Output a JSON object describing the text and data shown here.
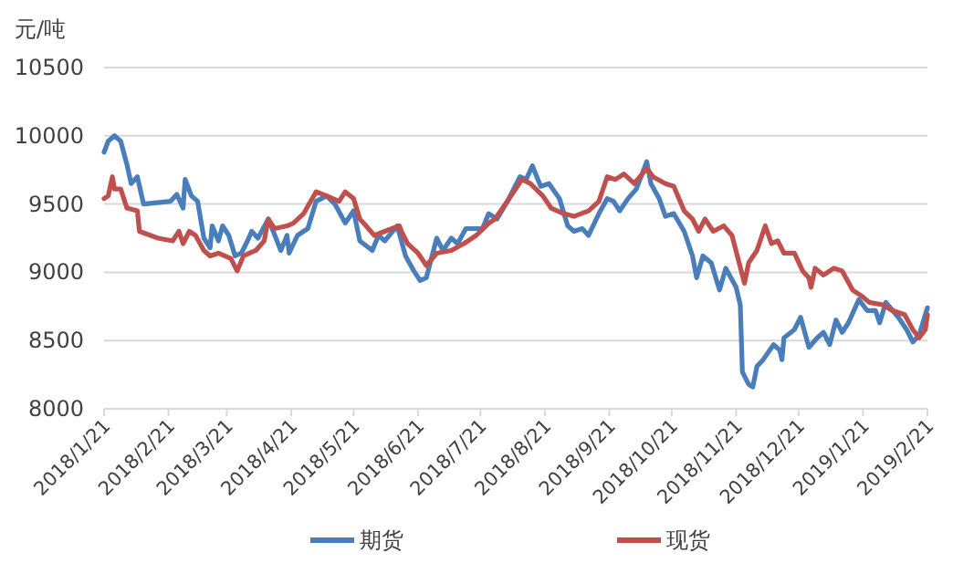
{
  "chart_data": {
    "type": "line",
    "ylabel": "元/吨",
    "grid": "y",
    "legend": "bottom",
    "xlim": [
      "2018-01-21",
      "2019-02-21"
    ],
    "xticks": [
      {
        "value": "2018-01-21",
        "label": "2018/1/21"
      },
      {
        "value": "2018-02-21",
        "label": "2018/2/21"
      },
      {
        "value": "2018-03-21",
        "label": "2018/3/21"
      },
      {
        "value": "2018-04-21",
        "label": "2018/4/21"
      },
      {
        "value": "2018-05-21",
        "label": "2018/5/21"
      },
      {
        "value": "2018-06-21",
        "label": "2018/6/21"
      },
      {
        "value": "2018-07-21",
        "label": "2018/7/21"
      },
      {
        "value": "2018-08-21",
        "label": "2018/8/21"
      },
      {
        "value": "2018-09-21",
        "label": "2018/9/21"
      },
      {
        "value": "2018-10-21",
        "label": "2018/10/21"
      },
      {
        "value": "2018-11-21",
        "label": "2018/11/21"
      },
      {
        "value": "2018-12-21",
        "label": "2018/12/21"
      },
      {
        "value": "2019-01-21",
        "label": "2019/1/21"
      },
      {
        "value": "2019-02-21",
        "label": "2019/2/21"
      }
    ],
    "ylim": [
      8000,
      10500
    ],
    "yticks": [
      8000,
      8500,
      9000,
      9500,
      10000,
      10500
    ],
    "series": [
      {
        "name": "期货",
        "color": "#4a7ebb",
        "x": [
          "2018-01-21",
          "2018-01-23",
          "2018-01-26",
          "2018-01-29",
          "2018-02-01",
          "2018-02-03",
          "2018-02-06",
          "2018-02-09",
          "2018-02-22",
          "2018-02-25",
          "2018-02-28",
          "2018-03-01",
          "2018-03-04",
          "2018-03-07",
          "2018-03-10",
          "2018-03-13",
          "2018-03-14",
          "2018-03-17",
          "2018-03-19",
          "2018-03-22",
          "2018-03-25",
          "2018-03-28",
          "2018-03-31",
          "2018-04-02",
          "2018-04-05",
          "2018-04-10",
          "2018-04-16",
          "2018-04-19",
          "2018-04-20",
          "2018-04-24",
          "2018-04-29",
          "2018-05-03",
          "2018-05-08",
          "2018-05-12",
          "2018-05-17",
          "2018-05-21",
          "2018-05-24",
          "2018-05-30",
          "2018-06-02",
          "2018-06-05",
          "2018-06-11",
          "2018-06-15",
          "2018-06-19",
          "2018-06-22",
          "2018-06-25",
          "2018-06-30",
          "2018-07-03",
          "2018-07-07",
          "2018-07-10",
          "2018-07-14",
          "2018-07-22",
          "2018-07-25",
          "2018-07-29",
          "2018-08-03",
          "2018-08-09",
          "2018-08-12",
          "2018-08-15",
          "2018-08-19",
          "2018-08-23",
          "2018-08-28",
          "2018-09-01",
          "2018-09-04",
          "2018-09-08",
          "2018-09-11",
          "2018-09-16",
          "2018-09-20",
          "2018-09-23",
          "2018-09-26",
          "2018-09-30",
          "2018-10-04",
          "2018-10-09",
          "2018-10-11",
          "2018-10-15",
          "2018-10-18",
          "2018-10-22",
          "2018-10-27",
          "2018-10-31",
          "2018-11-02",
          "2018-11-05",
          "2018-11-09",
          "2018-11-13",
          "2018-11-16",
          "2018-11-21",
          "2018-11-23",
          "2018-11-24",
          "2018-11-27",
          "2018-11-29",
          "2018-12-01",
          "2018-12-04",
          "2018-12-09",
          "2018-12-12",
          "2018-12-13",
          "2018-12-14",
          "2018-12-19",
          "2018-12-22",
          "2018-12-26",
          "2018-12-30",
          "2019-01-02",
          "2019-01-05",
          "2019-01-08",
          "2019-01-11",
          "2019-01-14",
          "2019-01-19",
          "2019-01-23",
          "2019-01-27",
          "2019-01-29",
          "2019-02-01",
          "2019-02-07",
          "2019-02-11",
          "2019-02-14",
          "2019-02-17",
          "2019-02-20",
          "2019-02-21"
        ],
        "values": [
          9880,
          9960,
          10000,
          9960,
          9790,
          9650,
          9700,
          9500,
          9520,
          9570,
          9470,
          9680,
          9560,
          9520,
          9250,
          9180,
          9340,
          9230,
          9340,
          9270,
          9120,
          9140,
          9230,
          9300,
          9250,
          9390,
          9160,
          9270,
          9140,
          9270,
          9320,
          9520,
          9560,
          9500,
          9360,
          9450,
          9230,
          9160,
          9270,
          9230,
          9340,
          9120,
          9010,
          8940,
          8960,
          9250,
          9160,
          9250,
          9210,
          9320,
          9320,
          9430,
          9390,
          9520,
          9700,
          9680,
          9780,
          9630,
          9650,
          9540,
          9340,
          9300,
          9320,
          9270,
          9430,
          9540,
          9520,
          9450,
          9540,
          9610,
          9810,
          9650,
          9540,
          9410,
          9430,
          9300,
          9120,
          8960,
          9120,
          9070,
          8870,
          9030,
          8890,
          8760,
          8270,
          8180,
          8160,
          8310,
          8360,
          8470,
          8430,
          8360,
          8520,
          8580,
          8670,
          8450,
          8520,
          8560,
          8470,
          8650,
          8560,
          8630,
          8800,
          8720,
          8720,
          8630,
          8780,
          8670,
          8580,
          8490,
          8540,
          8690,
          8740
        ]
      },
      {
        "name": "现货",
        "color": "#c0504d",
        "x": [
          "2018-01-21",
          "2018-01-23",
          "2018-01-25",
          "2018-01-26",
          "2018-01-29",
          "2018-02-01",
          "2018-02-06",
          "2018-02-07",
          "2018-02-16",
          "2018-02-23",
          "2018-02-26",
          "2018-02-28",
          "2018-03-03",
          "2018-03-06",
          "2018-03-10",
          "2018-03-13",
          "2018-03-17",
          "2018-03-23",
          "2018-03-26",
          "2018-03-29",
          "2018-04-04",
          "2018-04-08",
          "2018-04-10",
          "2018-04-13",
          "2018-04-19",
          "2018-04-22",
          "2018-04-27",
          "2018-05-03",
          "2018-05-08",
          "2018-05-14",
          "2018-05-17",
          "2018-05-21",
          "2018-05-24",
          "2018-05-27",
          "2018-05-31",
          "2018-06-05",
          "2018-06-12",
          "2018-06-13",
          "2018-06-16",
          "2018-06-21",
          "2018-06-25",
          "2018-06-30",
          "2018-07-07",
          "2018-07-13",
          "2018-07-19",
          "2018-07-25",
          "2018-07-28",
          "2018-08-03",
          "2018-08-10",
          "2018-08-14",
          "2018-08-20",
          "2018-08-24",
          "2018-08-30",
          "2018-09-04",
          "2018-09-11",
          "2018-09-16",
          "2018-09-20",
          "2018-09-24",
          "2018-09-28",
          "2018-10-03",
          "2018-10-09",
          "2018-10-12",
          "2018-10-18",
          "2018-10-22",
          "2018-10-27",
          "2018-10-31",
          "2018-11-03",
          "2018-11-06",
          "2018-11-10",
          "2018-11-15",
          "2018-11-19",
          "2018-11-25",
          "2018-11-27",
          "2018-12-01",
          "2018-12-05",
          "2018-12-08",
          "2018-12-11",
          "2018-12-14",
          "2018-12-19",
          "2018-12-23",
          "2018-12-26",
          "2018-12-27",
          "2018-12-29",
          "2019-01-02",
          "2019-01-07",
          "2019-01-11",
          "2019-01-16",
          "2019-01-20",
          "2019-01-24",
          "2019-01-31",
          "2019-02-04",
          "2019-02-10",
          "2019-02-14",
          "2019-02-17",
          "2019-02-20",
          "2019-02-21"
        ],
        "values": [
          9540,
          9560,
          9700,
          9610,
          9610,
          9470,
          9450,
          9300,
          9250,
          9230,
          9300,
          9210,
          9300,
          9270,
          9160,
          9120,
          9140,
          9100,
          9010,
          9120,
          9160,
          9230,
          9390,
          9320,
          9340,
          9360,
          9430,
          9590,
          9560,
          9520,
          9590,
          9540,
          9390,
          9340,
          9270,
          9300,
          9340,
          9300,
          9210,
          9140,
          9050,
          9140,
          9160,
          9210,
          9270,
          9360,
          9390,
          9520,
          9680,
          9650,
          9560,
          9470,
          9430,
          9410,
          9450,
          9520,
          9700,
          9680,
          9720,
          9650,
          9760,
          9700,
          9650,
          9630,
          9450,
          9390,
          9300,
          9390,
          9300,
          9340,
          9270,
          8920,
          9070,
          9160,
          9340,
          9210,
          9230,
          9140,
          9140,
          9010,
          8960,
          8890,
          9030,
          8980,
          9030,
          9010,
          8870,
          8830,
          8780,
          8760,
          8720,
          8690,
          8580,
          8520,
          8580,
          8690
        ]
      }
    ]
  }
}
